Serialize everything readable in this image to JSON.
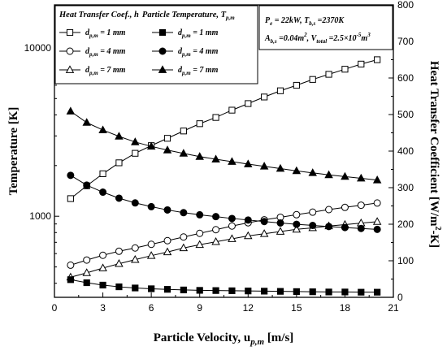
{
  "chart_data": {
    "type": "line",
    "x": [
      1,
      2,
      3,
      4,
      5,
      6,
      7,
      8,
      9,
      10,
      11,
      12,
      13,
      14,
      15,
      16,
      17,
      18,
      19,
      20
    ],
    "xlabel": "Particle Velocity, u",
    "xlabel_sub": "p,m",
    "xlabel_unit": " [m/s]",
    "ylabel": "Temperature [K]",
    "y2label": "Heat Transfer Coefficient [W/m",
    "y2label_sup": "2",
    "y2label_tail": "-K]",
    "xlim": [
      0,
      21
    ],
    "ylim": [
      330,
      18000
    ],
    "y_scale": "log",
    "y2lim": [
      0,
      800
    ],
    "x_ticks": [
      0,
      3,
      6,
      9,
      12,
      15,
      18,
      21
    ],
    "x_ticks_minor": [
      1.5,
      4.5,
      7.5,
      10.5,
      13.5,
      16.5,
      19.5
    ],
    "y_ticks": [
      1000,
      10000
    ],
    "y_tick_labels": [
      "1000",
      "10000"
    ],
    "y2_ticks": [
      0,
      100,
      200,
      300,
      400,
      500,
      600,
      700,
      800
    ],
    "legend": {
      "title_left": "Heat Transfer Coef., h",
      "title_right": "Particle Temperature, T",
      "title_right_sub": "p,m",
      "entries": [
        {
          "label": "d",
          "sub": "p,m",
          "value": " = 1 mm",
          "marker": "square",
          "filled": false
        },
        {
          "label": "d",
          "sub": "p,m",
          "value": " = 4 mm",
          "marker": "circle",
          "filled": false
        },
        {
          "label": "d",
          "sub": "p,m",
          "value": " = 7 mm",
          "marker": "triangle",
          "filled": false
        },
        {
          "label": "d",
          "sub": "p,m",
          "value": " = 1 mm",
          "marker": "square",
          "filled": true
        },
        {
          "label": "d",
          "sub": "p,m",
          "value": " = 4 mm",
          "marker": "circle",
          "filled": true
        },
        {
          "label": "d",
          "sub": "p,m",
          "value": " = 7 mm",
          "marker": "triangle",
          "filled": true
        }
      ]
    },
    "info_box": {
      "line1": [
        "P",
        "e",
        " = 22kW, T",
        "b,s",
        " =2370K"
      ],
      "line2": [
        "A",
        "b,s",
        " =0.04m",
        "2",
        ", V",
        "total",
        " =2.5×10",
        "-5",
        "m",
        "3"
      ]
    },
    "series": [
      {
        "name": "h, d = 1 mm",
        "axis": "right",
        "marker": "square",
        "filled": false,
        "values": [
          270,
          305,
          338,
          368,
          394,
          415,
          435,
          455,
          475,
          492,
          512,
          530,
          548,
          565,
          580,
          596,
          610,
          624,
          638,
          650
        ]
      },
      {
        "name": "h, d = 4 mm",
        "axis": "right",
        "marker": "circle",
        "filled": false,
        "values": [
          88,
          102,
          115,
          126,
          135,
          145,
          155,
          165,
          175,
          185,
          195,
          204,
          212,
          219,
          226,
          233,
          240,
          246,
          252,
          258
        ]
      },
      {
        "name": "h, d = 7 mm",
        "axis": "right",
        "marker": "triangle",
        "filled": false,
        "values": [
          55,
          67,
          80,
          92,
          103,
          114,
          124,
          135,
          144,
          152,
          160,
          168,
          174,
          180,
          186,
          190,
          195,
          199,
          203,
          207
        ]
      },
      {
        "name": "T, d = 1 mm",
        "axis": "left",
        "marker": "square",
        "filled": true,
        "values": [
          420,
          403,
          390,
          381,
          375,
          371,
          368,
          365,
          363,
          362,
          361,
          360,
          359,
          358,
          357,
          356,
          355,
          355,
          354,
          354
        ]
      },
      {
        "name": "T, d = 4 mm",
        "axis": "left",
        "marker": "circle",
        "filled": true,
        "values": [
          1750,
          1530,
          1390,
          1280,
          1200,
          1140,
          1090,
          1050,
          1020,
          995,
          970,
          950,
          930,
          912,
          896,
          882,
          869,
          857,
          846,
          836
        ]
      },
      {
        "name": "T, d = 7 mm",
        "axis": "left",
        "marker": "triangle",
        "filled": true,
        "values": [
          4200,
          3600,
          3250,
          2980,
          2760,
          2600,
          2470,
          2360,
          2260,
          2180,
          2110,
          2040,
          1980,
          1920,
          1860,
          1810,
          1760,
          1720,
          1680,
          1640
        ]
      }
    ]
  }
}
